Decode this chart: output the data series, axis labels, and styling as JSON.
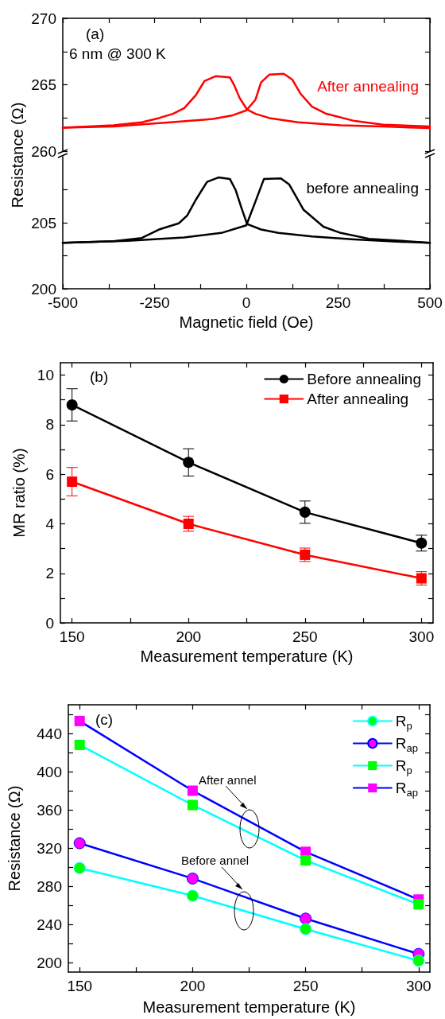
{
  "chart_data": [
    {
      "type": "line",
      "ylabel": "Resistance (Ω)",
      "annotations": [
        "(a)",
        "6 nm @ 300 K"
      ],
      "xlim": [
        -500,
        500
      ],
      "xticks": [
        -500,
        {
          "value": -375,
          "label": null
        },
        -250,
        {
          "value": -125,
          "label": null
        },
        0,
        {
          "value": 125,
          "label": null
        },
        250,
        {
          "value": 375,
          "label": null
        },
        500
      ],
      "ylim": [
        260,
        270
      ],
      "yticks": [
        260,
        {
          "value": 262.5,
          "label": null
        },
        265,
        {
          "value": 267.5,
          "label": null
        },
        270
      ],
      "tick_labels": "y",
      "marker": "none",
      "series": [
        {
          "name": "After annealing",
          "color": "#ff0000",
          "x": [
            -500,
            -362,
            -285,
            -238,
            -200,
            -169,
            -138,
            -114,
            -84,
            -45,
            -33,
            -18,
            2,
            25,
            63,
            141,
            257,
            373,
            500
          ],
          "values": [
            261.76,
            261.95,
            262.17,
            262.49,
            262.81,
            263.24,
            264.2,
            265.28,
            265.64,
            265.56,
            264.96,
            263.99,
            263.13,
            262.81,
            262.49,
            262.17,
            261.95,
            261.85,
            261.74
          ]
        },
        {
          "color": "#ff0000",
          "x": [
            -500,
            -362,
            -207,
            -91,
            -37,
            0,
            25,
            40,
            63,
            102,
            125,
            148,
            179,
            218,
            295,
            373,
            500
          ],
          "values": [
            261.76,
            261.85,
            262.17,
            262.42,
            262.7,
            263.07,
            263.88,
            265.17,
            265.77,
            265.82,
            265.39,
            264.31,
            263.35,
            262.81,
            262.27,
            261.99,
            261.85
          ]
        }
      ]
    },
    {
      "type": "line",
      "xlabel": "Magnetic field (Oe)",
      "xlim": [
        -500,
        500
      ],
      "xticks": [
        -500,
        {
          "value": -375,
          "label": null
        },
        -250,
        {
          "value": -125,
          "label": null
        },
        0,
        {
          "value": 125,
          "label": null
        },
        250,
        {
          "value": 375,
          "label": null
        },
        500
      ],
      "ylim": [
        200,
        210
      ],
      "yticks": [
        200,
        {
          "value": 202.5,
          "label": null
        },
        205,
        {
          "value": 207.5,
          "label": null
        }
      ],
      "marker": "none",
      "series": [
        {
          "name": "before annealing",
          "color": "#000000",
          "x": [
            -500,
            -362,
            -285,
            -238,
            -184,
            -161,
            -138,
            -107,
            -76,
            -45,
            -29,
            -14,
            2,
            40,
            87,
            179,
            295,
            410,
            500
          ],
          "values": [
            203.49,
            203.6,
            203.85,
            204.49,
            204.96,
            205.55,
            206.72,
            208.1,
            208.43,
            208.32,
            207.47,
            206.19,
            204.91,
            204.49,
            204.23,
            203.96,
            203.74,
            203.57,
            203.49
          ]
        },
        {
          "color": "#000000",
          "x": [
            -500,
            -323,
            -169,
            -68,
            0,
            25,
            48,
            94,
            117,
            156,
            210,
            257,
            334,
            500
          ],
          "values": [
            203.49,
            203.64,
            203.89,
            204.23,
            204.81,
            206.62,
            208.32,
            208.36,
            207.89,
            205.98,
            204.7,
            204.23,
            203.79,
            203.49
          ]
        }
      ]
    },
    {
      "type": "line",
      "xlabel": "Measurement temperature (K)",
      "ylabel": "MR ratio (%)",
      "annotations": [
        "(b)"
      ],
      "x": [
        150,
        200,
        250,
        300
      ],
      "xlim": [
        145,
        305
      ],
      "xticks": [
        150,
        {
          "value": 175,
          "label": null
        },
        200,
        {
          "value": 225,
          "label": null
        },
        250,
        {
          "value": 275,
          "label": null
        },
        300
      ],
      "ylim": [
        0,
        10.5
      ],
      "yticks": [
        0,
        {
          "value": 1,
          "label": null
        },
        2,
        {
          "value": 3,
          "label": null
        },
        4,
        {
          "value": 5,
          "label": null
        },
        6,
        {
          "value": 7,
          "label": null
        },
        8,
        {
          "value": 9,
          "label": null
        },
        10
      ],
      "legend": "top right",
      "series": [
        {
          "name": "Before annealing",
          "color": "#000000",
          "marker": "circle",
          "values": [
            8.8,
            6.48,
            4.47,
            3.22
          ],
          "errors": [
            0.65,
            0.55,
            0.45,
            0.32
          ]
        },
        {
          "name": "After annealing",
          "color": "#ff0000",
          "marker": "square",
          "values": [
            5.7,
            4.0,
            2.75,
            1.8
          ],
          "errors": [
            0.57,
            0.3,
            0.27,
            0.27
          ]
        }
      ]
    },
    {
      "type": "line",
      "xlabel": "Measurement temperature (K)",
      "ylabel": "Resistance (Ω)",
      "annotations": [
        "(c)",
        "After annel",
        "Before annel"
      ],
      "x": [
        150,
        200,
        250,
        300
      ],
      "xlim": [
        145,
        305
      ],
      "xticks": [
        150,
        {
          "value": 175,
          "label": null
        },
        200,
        {
          "value": 225,
          "label": null
        },
        250,
        {
          "value": 275,
          "label": null
        },
        300
      ],
      "ylim": [
        190,
        470
      ],
      "yticks": [
        200,
        {
          "value": 220,
          "label": null
        },
        240,
        {
          "value": 260,
          "label": null
        },
        280,
        {
          "value": 300,
          "label": null
        },
        320,
        {
          "value": 340,
          "label": null
        },
        360,
        {
          "value": 380,
          "label": null
        },
        400,
        {
          "value": 420,
          "label": null
        },
        440,
        {
          "value": 460,
          "label": null
        }
      ],
      "legend": "top right",
      "series": [
        {
          "name": "R$_{p}$",
          "color": "#00ffff",
          "colors": [
            "#00ff00",
            "#00ff00",
            "#00ff00",
            "#00ff00"
          ],
          "marker": "circle",
          "values": [
            299,
            270,
            235,
            202
          ]
        },
        {
          "name": "R$_{ap}$",
          "color": "#0000ff",
          "colors": [
            "#ff00ff",
            "#ff00ff",
            "#ff00ff",
            "#ff00ff"
          ],
          "marker": "circle",
          "values": [
            325,
            288,
            246,
            209
          ]
        },
        {
          "name": "R$_{p}$",
          "color": "#00ffff",
          "colors": [
            "#00ff00",
            "#00ff00",
            "#00ff00",
            "#00ff00"
          ],
          "marker": "square",
          "values": [
            428,
            365,
            307,
            261
          ]
        },
        {
          "name": "R$_{ap}$",
          "color": "#0000ff",
          "colors": [
            "#ff00ff",
            "#ff00ff",
            "#ff00ff",
            "#ff00ff"
          ],
          "marker": "square",
          "values": [
            453,
            380,
            316,
            266
          ]
        }
      ]
    }
  ]
}
